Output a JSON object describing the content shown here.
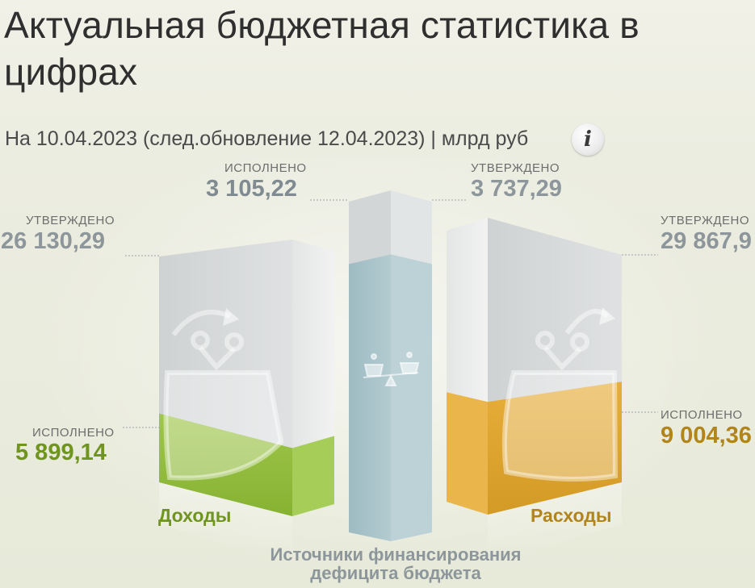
{
  "header": {
    "title": "Актуальная бюджетная статистика в цифрах",
    "subtitle": "На 10.04.2023 (след.обновление 12.04.2023) | млрд руб",
    "info_icon": "i"
  },
  "chart_data": {
    "type": "bar",
    "categories": [
      "Доходы",
      "Источники финансирования дефицита бюджета",
      "Расходы"
    ],
    "series": [
      {
        "name": "утверждено",
        "values": [
          26130.29,
          3737.29,
          29867.9
        ]
      },
      {
        "name": "исполнено",
        "values": [
          5899.14,
          3105.22,
          9004.36
        ]
      }
    ],
    "labels": {
      "income": {
        "category": "Доходы",
        "approved_label": "УТВЕРЖДЕНО",
        "approved_value": "26 130,29",
        "executed_label": "ИСПОЛНЕНО",
        "executed_value": "5 899,14"
      },
      "deficit": {
        "category": "Источники финансирования дефицита бюджета",
        "executed_label": "ИСПОЛНЕНО",
        "executed_value": "3 105,22",
        "approved_label": "УТВЕРЖДЕНО",
        "approved_value": "3 737,29"
      },
      "expense": {
        "category": "Расходы",
        "approved_label": "УТВЕРЖДЕНО",
        "approved_value": "29 867,9",
        "executed_label": "ИСПОЛНЕНО",
        "executed_value": "9 004,36"
      }
    },
    "category_labels": {
      "income": "Доходы",
      "expense": "Расходы",
      "deficit_line1": "Источники финансирования",
      "deficit_line2": "дефицита бюджета"
    },
    "colors": {
      "income_fill": "#8fbc3a",
      "expense_fill": "#e0a530",
      "deficit_fill": "#a8c3ca",
      "approved_box": "#d6d8d9"
    }
  }
}
